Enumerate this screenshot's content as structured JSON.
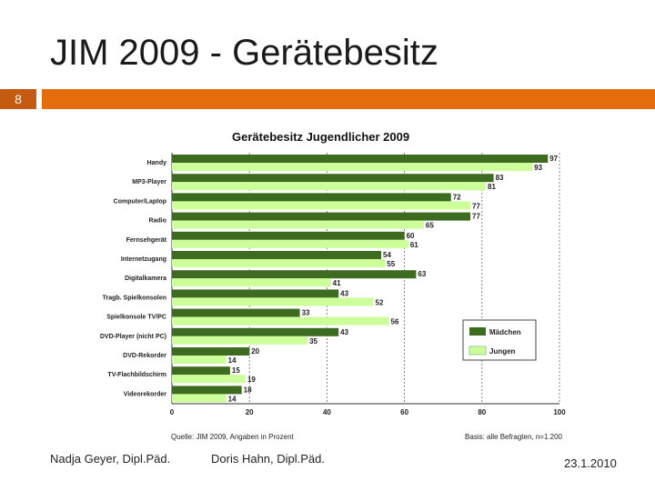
{
  "slide": {
    "title": "JIM 2009 - Gerätebesitz",
    "number": "8",
    "footer_left": "Nadja Geyer, Dipl.Päd.",
    "footer_middle": "Doris Hahn, Dipl.Päd.",
    "footer_right": "23.1.2010"
  },
  "colors": {
    "accent": "#e46c0a",
    "maedchen": "#3d6b1f",
    "jungen": "#ccff99"
  },
  "chart_data": {
    "type": "bar",
    "orientation": "horizontal",
    "title": "Gerätebesitz Jugendlicher 2009",
    "categories": [
      "Handy",
      "MP3-Player",
      "Computer/Laptop",
      "Radio",
      "Fernsehgerät",
      "Internetzugang",
      "Digitalkamera",
      "Tragb. Spielkonsolen",
      "Spielkonsole TV/PC",
      "DVD-Player (nicht PC)",
      "DVD-Rekorder",
      "TV-Flachbildschirm",
      "Videorekorder"
    ],
    "series": [
      {
        "name": "Mädchen",
        "values": [
          97,
          83,
          72,
          77,
          60,
          54,
          63,
          43,
          33,
          43,
          20,
          15,
          18
        ]
      },
      {
        "name": "Jungen",
        "values": [
          93,
          81,
          77,
          65,
          61,
          55,
          41,
          52,
          56,
          35,
          14,
          19,
          14
        ]
      }
    ],
    "xlim": [
      0,
      100
    ],
    "xticks": [
      "0",
      "20",
      "40",
      "60",
      "80",
      "100"
    ],
    "grid": true,
    "legend_position": "lower-right",
    "source": "Quelle: JIM 2009, Angaben in Prozent",
    "basis": "Basis: alle Befragten, n=1.200"
  }
}
